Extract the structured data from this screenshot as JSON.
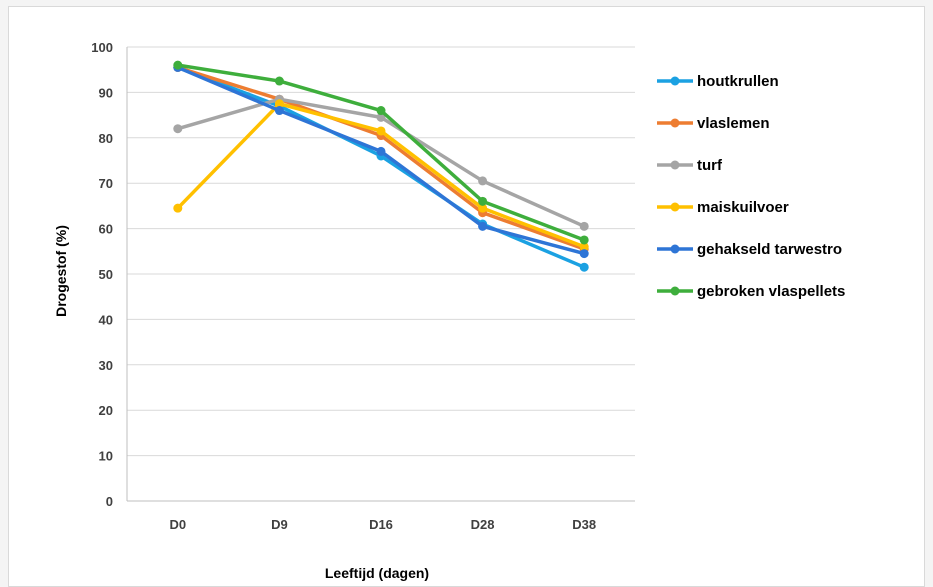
{
  "chart_data": {
    "type": "line",
    "categories": [
      "D0",
      "D9",
      "D16",
      "D28",
      "D38"
    ],
    "xlabel": "Leeftijd (dagen)",
    "ylabel": "Drogestof (%)",
    "ylim": [
      0,
      100
    ],
    "yticks": [
      0,
      10,
      20,
      30,
      40,
      50,
      60,
      70,
      80,
      90,
      100
    ],
    "grid": true,
    "legend_position": "right",
    "series": [
      {
        "name": "houtkrullen",
        "color": "#1ba1e2",
        "values": [
          95.5,
          87,
          76,
          61,
          51.5
        ]
      },
      {
        "name": "vlaslemen",
        "color": "#ed7d31",
        "values": [
          95.5,
          88.5,
          80.5,
          63.5,
          55.5
        ]
      },
      {
        "name": "turf",
        "color": "#a5a5a5",
        "values": [
          82,
          88.5,
          84.5,
          70.5,
          60.5
        ]
      },
      {
        "name": "maiskuilvoer",
        "color": "#ffc000",
        "values": [
          64.5,
          87.5,
          81.5,
          64.5,
          56
        ]
      },
      {
        "name": "gehakseld tarwestro",
        "color": "#2e75d6",
        "values": [
          95.5,
          86,
          77,
          60.5,
          54.5
        ]
      },
      {
        "name": "gebroken vlaspellets",
        "color": "#3eae3c",
        "values": [
          96,
          92.5,
          86,
          66,
          57.5
        ]
      }
    ]
  }
}
